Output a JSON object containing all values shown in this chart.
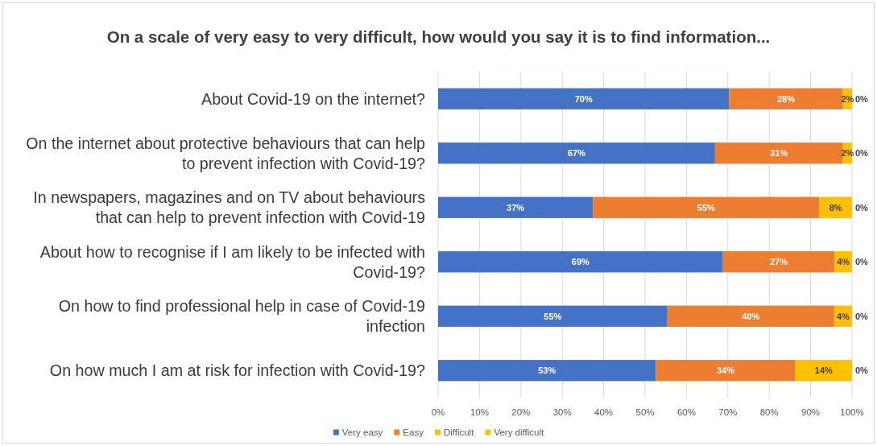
{
  "chart_data": {
    "type": "bar",
    "title": "On a scale of very easy to very difficult, how would you say it is to find information...",
    "categories": [
      "About Covid-19 on the internet?",
      "On the internet about protective behaviours that can help to prevent infection with Covid-19?",
      "In newspapers, magazines and on TV about behaviours that can help to prevent infection with Covid-19",
      "About how to recognise if I am likely to be infected with Covid-19?",
      "On how to find professional help in case of Covid-19 infection",
      "On how much I am at risk for infection with Covid-19?"
    ],
    "orientation": "horizontal",
    "stacked": true,
    "series": [
      {
        "name": "Very easy",
        "color": "#4472c4",
        "values": [
          70.3,
          66.9,
          37.4,
          68.8,
          55.4,
          52.6
        ],
        "value_labels": [
          "70%",
          "67%",
          "37%",
          "69%",
          "55%",
          "53%"
        ]
      },
      {
        "name": "Easy",
        "color": "#ed7d31",
        "values": [
          27.5,
          30.9,
          54.7,
          27.0,
          40.3,
          33.7
        ],
        "value_labels": [
          "28%",
          "31%",
          "55%",
          "27%",
          "40%",
          "34%"
        ]
      },
      {
        "name": "Difficult",
        "color": "#ffc000",
        "values": [
          2.2,
          2.2,
          7.9,
          4.2,
          4.3,
          13.7
        ],
        "value_labels": [
          "2%",
          "2%",
          "8%",
          "4%",
          "4%",
          "14%"
        ]
      },
      {
        "name": "Very difficult",
        "color": "#ffc000",
        "values": [
          0,
          0,
          0,
          0,
          0,
          0
        ],
        "value_labels": [
          "0%",
          "0%",
          "0%",
          "0%",
          "0%",
          "0%"
        ]
      }
    ],
    "xlim": [
      0,
      100
    ],
    "xticks": [
      {
        "value": 0,
        "label": "0%"
      },
      {
        "value": 10,
        "label": "10%"
      },
      {
        "value": 20,
        "label": "20%"
      },
      {
        "value": 30,
        "label": "30%"
      },
      {
        "value": 40,
        "label": "40%"
      },
      {
        "value": 50,
        "label": "50%"
      },
      {
        "value": 60,
        "label": "60%"
      },
      {
        "value": 70,
        "label": "70%"
      },
      {
        "value": 80,
        "label": "80%"
      },
      {
        "value": 90,
        "label": "90%"
      },
      {
        "value": 100,
        "label": "100%"
      }
    ],
    "grid": "x",
    "legend": "bottom"
  }
}
